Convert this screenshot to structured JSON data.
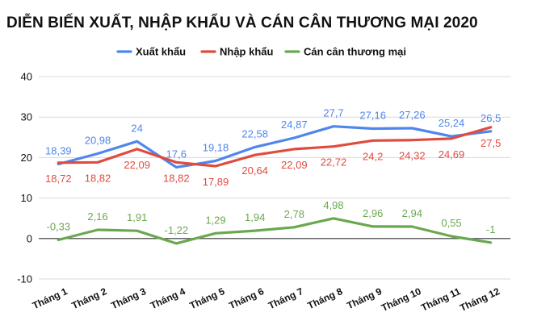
{
  "chart_data": {
    "type": "line",
    "title": "DIỄN BIẾN XUẤT, NHẬP KHẨU VÀ CÁN CÂN THƯƠNG MẠI 2020",
    "categories": [
      "Tháng 1",
      "Tháng 2",
      "Tháng 3",
      "Tháng 4",
      "Tháng 5",
      "Tháng 6",
      "Tháng 7",
      "Tháng 8",
      "Tháng 9",
      "Tháng 10",
      "Tháng 11",
      "Tháng 12"
    ],
    "ylim": [
      -10,
      40
    ],
    "yticks": [
      -10,
      0,
      10,
      20,
      30,
      40
    ],
    "ytick_labels": [
      "-10",
      "0",
      "10",
      "20",
      "30",
      "40"
    ],
    "grid": true,
    "legend_position": "top",
    "series": [
      {
        "name": "Xuất khẩu",
        "color": "#4f86ec",
        "label_position": "above",
        "values": [
          18.39,
          20.98,
          24,
          17.6,
          19.18,
          22.58,
          24.87,
          27.7,
          27.16,
          27.26,
          25.24,
          26.5
        ],
        "labels": [
          "18,39",
          "20,98",
          "24",
          "17,6",
          "19,18",
          "22,58",
          "24,87",
          "27,7",
          "27,16",
          "27,26",
          "25,24",
          "26,5"
        ]
      },
      {
        "name": "Nhập khẩu",
        "color": "#e04b3f",
        "label_position": "below",
        "values": [
          18.72,
          18.82,
          22.09,
          18.82,
          17.89,
          20.64,
          22.09,
          22.72,
          24.2,
          24.32,
          24.69,
          27.5
        ],
        "labels": [
          "18,72",
          "18,82",
          "22,09",
          "18,82",
          "17,89",
          "20,64",
          "22,09",
          "22,72",
          "24,2",
          "24,32",
          "24,69",
          "27,5"
        ]
      },
      {
        "name": "Cán cân thương mại",
        "color": "#6aa84f",
        "label_position": "above",
        "values": [
          -0.33,
          2.16,
          1.91,
          -1.22,
          1.29,
          1.94,
          2.78,
          4.98,
          2.96,
          2.94,
          0.55,
          -1
        ],
        "labels": [
          "-0,33",
          "2,16",
          "1,91",
          "-1,22",
          "1,29",
          "1,94",
          "2,78",
          "4,98",
          "2,96",
          "2,94",
          "0,55",
          "-1"
        ]
      }
    ]
  }
}
